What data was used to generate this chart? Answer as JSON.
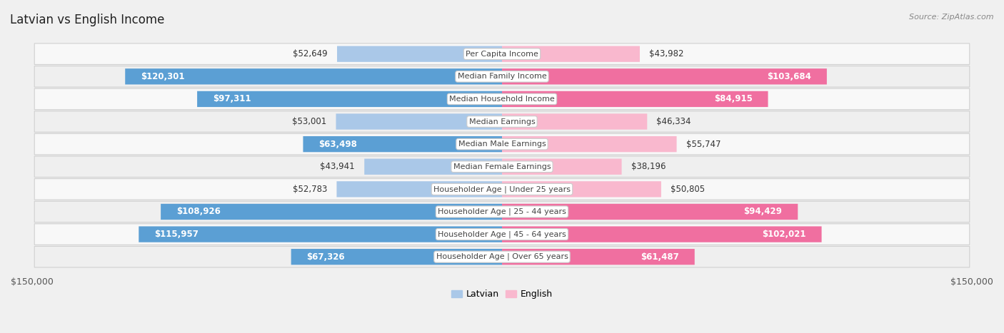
{
  "title": "Latvian vs English Income",
  "source": "Source: ZipAtlas.com",
  "max_value": 150000,
  "categories": [
    "Per Capita Income",
    "Median Family Income",
    "Median Household Income",
    "Median Earnings",
    "Median Male Earnings",
    "Median Female Earnings",
    "Householder Age | Under 25 years",
    "Householder Age | 25 - 44 years",
    "Householder Age | 45 - 64 years",
    "Householder Age | Over 65 years"
  ],
  "latvian_values": [
    52649,
    120301,
    97311,
    53001,
    63498,
    43941,
    52783,
    108926,
    115957,
    67326
  ],
  "english_values": [
    43982,
    103684,
    84915,
    46334,
    55747,
    38196,
    50805,
    94429,
    102021,
    61487
  ],
  "latvian_color_light": "#aac8e8",
  "latvian_color_dark": "#5b9fd4",
  "english_color_light": "#f9b8ce",
  "english_color_dark": "#f06fa0",
  "bg_color": "#f0f0f0",
  "row_bg_odd": "#f8f8f8",
  "row_bg_even": "#efefef",
  "label_bg": "#ffffff",
  "title_fontsize": 12,
  "value_fontsize": 8.5,
  "label_fontsize": 8,
  "legend_fontsize": 9,
  "source_fontsize": 8,
  "inside_text_threshold": 60000
}
